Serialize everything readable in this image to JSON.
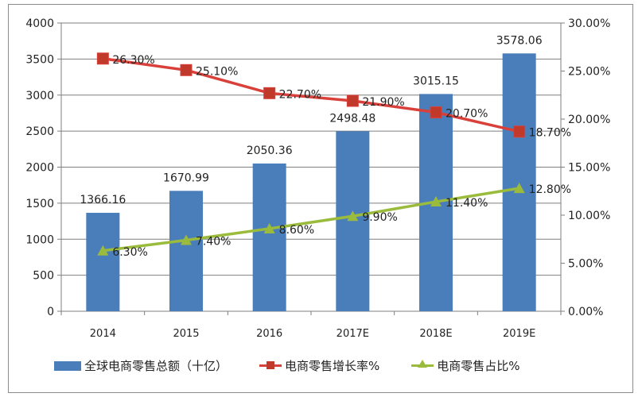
{
  "chart_data": {
    "type": "bar+line",
    "categories": [
      "2014",
      "2015",
      "2016",
      "2017E",
      "2018E",
      "2019E"
    ],
    "series": [
      {
        "name": "全球电商零售总额（十亿）",
        "type": "bar",
        "axis": "left",
        "color": "#4a7ebb",
        "values": [
          1366.16,
          1670.99,
          2050.36,
          2498.48,
          3015.15,
          3578.06
        ],
        "labels": [
          "1366.16",
          "1670.99",
          "2050.36",
          "2498.48",
          "3015.15",
          "3578.06"
        ]
      },
      {
        "name": "电商零售增长率%",
        "type": "line",
        "axis": "right",
        "color": "#d9403a",
        "marker": "square",
        "values": [
          26.3,
          25.1,
          22.7,
          21.9,
          20.7,
          18.7
        ],
        "labels": [
          "26.30%",
          "25.10%",
          "22.70%",
          "21.90%",
          "20.70%",
          "18.70%"
        ]
      },
      {
        "name": "电商零售占比%",
        "type": "line",
        "axis": "right",
        "color": "#9bbb3c",
        "marker": "triangle",
        "values": [
          6.3,
          7.4,
          8.6,
          9.9,
          11.4,
          12.8
        ],
        "labels": [
          "6.30%",
          "7.40%",
          "8.60%",
          "9.90%",
          "11.40%",
          "12.80%"
        ]
      }
    ],
    "y_left": {
      "range": [
        0,
        4000
      ],
      "ticks": [
        "0",
        "500",
        "1000",
        "1500",
        "2000",
        "2500",
        "3000",
        "3500",
        "4000"
      ]
    },
    "y_right": {
      "range": [
        0,
        30
      ],
      "ticks": [
        "0.00%",
        "5.00%",
        "10.00%",
        "15.00%",
        "20.00%",
        "25.00%",
        "30.00%"
      ]
    },
    "grid": true,
    "legend": "bottom"
  }
}
